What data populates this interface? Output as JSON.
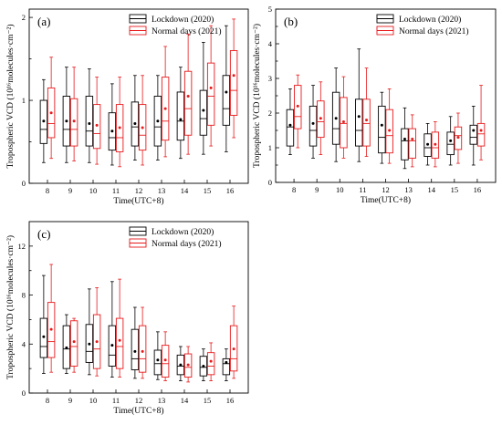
{
  "figure": {
    "legend": [
      "Lockdown (2020)",
      "Normal days (2021)"
    ],
    "ylabel": "Tropospheric  VCD (10¹⁶molecules·cm⁻²)",
    "xlabel": "Time(UTC+8)",
    "colors": {
      "lockdown": "#000000",
      "normal": "#e8191b"
    }
  },
  "chart_data": [
    {
      "type": "box",
      "panel_label": "(a)",
      "xlabel": "Time(UTC+8)",
      "ylabel": "Tropospheric  VCD (10¹⁶molecules·cm⁻²)",
      "ylim": [
        0,
        2.1
      ],
      "yticks": [
        0,
        1,
        2
      ],
      "categories": [
        "8",
        "9",
        "10",
        "11",
        "12",
        "13",
        "14",
        "15",
        "16"
      ],
      "legend": [
        "Lockdown (2020)",
        "Normal days (2021)"
      ],
      "legend_position": "top-right",
      "series": [
        {
          "name": "Lockdown (2020)",
          "color": "#000000",
          "boxes": [
            {
              "min": 0.25,
              "q1": 0.48,
              "median": 0.65,
              "q3": 1.0,
              "max": 1.25,
              "mean": 0.75
            },
            {
              "min": 0.25,
              "q1": 0.45,
              "median": 0.65,
              "q3": 1.05,
              "max": 1.4,
              "mean": 0.75
            },
            {
              "min": 0.25,
              "q1": 0.45,
              "median": 0.63,
              "q3": 1.05,
              "max": 1.38,
              "mean": 0.72
            },
            {
              "min": 0.22,
              "q1": 0.4,
              "median": 0.55,
              "q3": 0.85,
              "max": 1.2,
              "mean": 0.63
            },
            {
              "min": 0.28,
              "q1": 0.45,
              "median": 0.68,
              "q3": 0.98,
              "max": 1.3,
              "mean": 0.72
            },
            {
              "min": 0.28,
              "q1": 0.45,
              "median": 0.68,
              "q3": 1.05,
              "max": 1.3,
              "mean": 0.75
            },
            {
              "min": 0.3,
              "q1": 0.52,
              "median": 0.75,
              "q3": 1.1,
              "max": 1.4,
              "mean": 0.77
            },
            {
              "min": 0.35,
              "q1": 0.58,
              "median": 0.78,
              "q3": 1.12,
              "max": 1.7,
              "mean": 0.88
            },
            {
              "min": 0.38,
              "q1": 0.7,
              "median": 0.9,
              "q3": 1.3,
              "max": 1.9,
              "mean": 1.1
            }
          ]
        },
        {
          "name": "Normal days (2021)",
          "color": "#e8191b",
          "boxes": [
            {
              "min": 0.3,
              "q1": 0.55,
              "median": 0.72,
              "q3": 1.15,
              "max": 1.52,
              "mean": 0.85
            },
            {
              "min": 0.27,
              "q1": 0.45,
              "median": 0.65,
              "q3": 1.02,
              "max": 1.4,
              "mean": 0.75
            },
            {
              "min": 0.23,
              "q1": 0.42,
              "median": 0.6,
              "q3": 0.95,
              "max": 1.28,
              "mean": 0.7
            },
            {
              "min": 0.2,
              "q1": 0.38,
              "median": 0.55,
              "q3": 0.95,
              "max": 1.28,
              "mean": 0.67
            },
            {
              "min": 0.22,
              "q1": 0.4,
              "median": 0.58,
              "q3": 0.95,
              "max": 1.3,
              "mean": 0.67
            },
            {
              "min": 0.32,
              "q1": 0.52,
              "median": 0.75,
              "q3": 1.28,
              "max": 1.65,
              "mean": 0.9
            },
            {
              "min": 0.35,
              "q1": 0.58,
              "median": 0.9,
              "q3": 1.35,
              "max": 1.8,
              "mean": 1.05
            },
            {
              "min": 0.45,
              "q1": 0.7,
              "median": 1.05,
              "q3": 1.45,
              "max": 1.9,
              "mean": 1.15
            },
            {
              "min": 0.55,
              "q1": 0.82,
              "median": 1.12,
              "q3": 1.6,
              "max": 1.98,
              "mean": 1.3
            }
          ]
        }
      ]
    },
    {
      "type": "box",
      "panel_label": "(b)",
      "xlabel": "Time(UTC+8)",
      "ylabel": "Tropospheric  VCD (10¹⁶molecules·cm⁻²)",
      "ylim": [
        0,
        5
      ],
      "yticks": [
        0,
        1,
        2,
        3,
        4,
        5
      ],
      "categories": [
        "8",
        "9",
        "10",
        "11",
        "12",
        "13",
        "14",
        "15",
        "16"
      ],
      "legend": [
        "Lockdown (2020)",
        "Normal days (2021)"
      ],
      "legend_position": "top-right",
      "series": [
        {
          "name": "Lockdown (2020)",
          "color": "#000000",
          "boxes": [
            {
              "min": 0.8,
              "q1": 1.05,
              "median": 1.6,
              "q3": 2.1,
              "max": 2.7,
              "mean": 1.65
            },
            {
              "min": 0.7,
              "q1": 1.05,
              "median": 1.5,
              "q3": 2.2,
              "max": 2.8,
              "mean": 1.7
            },
            {
              "min": 0.6,
              "q1": 1.1,
              "median": 1.55,
              "q3": 2.6,
              "max": 3.3,
              "mean": 1.85
            },
            {
              "min": 0.6,
              "q1": 1.05,
              "median": 1.5,
              "q3": 2.4,
              "max": 3.85,
              "mean": 1.9
            },
            {
              "min": 0.55,
              "q1": 0.85,
              "median": 1.3,
              "q3": 2.2,
              "max": 2.6,
              "mean": 1.65
            },
            {
              "min": 0.4,
              "q1": 0.65,
              "median": 1.2,
              "q3": 1.55,
              "max": 2.15,
              "mean": 1.25
            },
            {
              "min": 0.5,
              "q1": 0.75,
              "median": 1.0,
              "q3": 1.4,
              "max": 1.7,
              "mean": 1.1
            },
            {
              "min": 0.5,
              "q1": 0.8,
              "median": 1.1,
              "q3": 1.45,
              "max": 1.9,
              "mean": 1.2
            },
            {
              "min": 0.5,
              "q1": 1.1,
              "median": 1.3,
              "q3": 1.65,
              "max": 2.2,
              "mean": 1.5
            }
          ]
        },
        {
          "name": "Normal days (2021)",
          "color": "#e8191b",
          "boxes": [
            {
              "min": 1.0,
              "q1": 1.55,
              "median": 1.9,
              "q3": 2.8,
              "max": 3.1,
              "mean": 2.2
            },
            {
              "min": 0.8,
              "q1": 1.3,
              "median": 1.75,
              "q3": 2.35,
              "max": 2.9,
              "mean": 1.85
            },
            {
              "min": 0.7,
              "q1": 1.0,
              "median": 1.7,
              "q3": 2.45,
              "max": 3.05,
              "mean": 1.75
            },
            {
              "min": 0.75,
              "q1": 1.05,
              "median": 1.7,
              "q3": 2.4,
              "max": 3.3,
              "mean": 1.8
            },
            {
              "min": 0.55,
              "q1": 0.85,
              "median": 1.35,
              "q3": 2.1,
              "max": 2.7,
              "mean": 1.5
            },
            {
              "min": 0.45,
              "q1": 0.7,
              "median": 1.2,
              "q3": 1.55,
              "max": 1.95,
              "mean": 1.25
            },
            {
              "min": 0.45,
              "q1": 0.7,
              "median": 1.0,
              "q3": 1.45,
              "max": 1.75,
              "mean": 1.1
            },
            {
              "min": 0.55,
              "q1": 0.95,
              "median": 1.35,
              "q3": 1.6,
              "max": 2.0,
              "mean": 1.3
            },
            {
              "min": 0.65,
              "q1": 1.05,
              "median": 1.4,
              "q3": 1.7,
              "max": 2.8,
              "mean": 1.5
            }
          ]
        }
      ]
    },
    {
      "type": "box",
      "panel_label": "(c)",
      "xlabel": "Time(UTC+8)",
      "ylabel": "Tropospheric  VCD (10¹⁶molecules·cm⁻²)",
      "ylim": [
        0,
        14
      ],
      "yticks": [
        0,
        4,
        8,
        12
      ],
      "categories": [
        "8",
        "9",
        "10",
        "11",
        "12",
        "13",
        "14",
        "15",
        "16"
      ],
      "legend": [
        "Lockdown (2020)",
        "Normal days (2021)"
      ],
      "legend_position": "top-right",
      "series": [
        {
          "name": "Lockdown (2020)",
          "color": "#000000",
          "boxes": [
            {
              "min": 1.6,
              "q1": 2.9,
              "median": 3.8,
              "q3": 6.1,
              "max": 9.6,
              "mean": 4.6
            },
            {
              "min": 1.6,
              "q1": 2.0,
              "median": 3.6,
              "q3": 5.5,
              "max": 6.4,
              "mean": 3.7
            },
            {
              "min": 1.5,
              "q1": 2.5,
              "median": 3.4,
              "q3": 5.6,
              "max": 8.5,
              "mean": 4.0
            },
            {
              "min": 1.3,
              "q1": 2.2,
              "median": 3.1,
              "q3": 5.5,
              "max": 9.1,
              "mean": 3.9
            },
            {
              "min": 1.2,
              "q1": 1.9,
              "median": 2.8,
              "q3": 5.2,
              "max": 7.0,
              "mean": 3.4
            },
            {
              "min": 1.1,
              "q1": 1.5,
              "median": 2.4,
              "q3": 3.5,
              "max": 5.0,
              "mean": 2.7
            },
            {
              "min": 1.0,
              "q1": 1.5,
              "median": 2.2,
              "q3": 3.1,
              "max": 3.8,
              "mean": 2.3
            },
            {
              "min": 1.0,
              "q1": 1.4,
              "median": 2.1,
              "q3": 3.0,
              "max": 3.6,
              "mean": 2.2
            },
            {
              "min": 1.0,
              "q1": 1.5,
              "median": 2.4,
              "q3": 2.8,
              "max": 3.6,
              "mean": 2.5
            }
          ]
        },
        {
          "name": "Normal days (2021)",
          "color": "#e8191b",
          "boxes": [
            {
              "min": 1.7,
              "q1": 2.9,
              "median": 4.2,
              "q3": 7.4,
              "max": 10.5,
              "mean": 5.2
            },
            {
              "min": 1.7,
              "q1": 2.2,
              "median": 3.8,
              "q3": 5.9,
              "max": 6.1,
              "mean": 4.2
            },
            {
              "min": 1.4,
              "q1": 2.0,
              "median": 3.6,
              "q3": 6.4,
              "max": 8.6,
              "mean": 4.2
            },
            {
              "min": 1.3,
              "q1": 2.0,
              "median": 3.8,
              "q3": 6.1,
              "max": 9.3,
              "mean": 4.3
            },
            {
              "min": 1.2,
              "q1": 1.7,
              "median": 2.8,
              "q3": 5.5,
              "max": 7.0,
              "mean": 3.4
            },
            {
              "min": 1.0,
              "q1": 1.3,
              "median": 2.4,
              "q3": 3.9,
              "max": 5.0,
              "mean": 2.7
            },
            {
              "min": 0.9,
              "q1": 1.3,
              "median": 2.1,
              "q3": 3.2,
              "max": 3.8,
              "mean": 2.3
            },
            {
              "min": 1.0,
              "q1": 1.5,
              "median": 2.2,
              "q3": 3.3,
              "max": 4.1,
              "mean": 2.6
            },
            {
              "min": 1.2,
              "q1": 1.8,
              "median": 2.8,
              "q3": 5.5,
              "max": 7.1,
              "mean": 3.6
            }
          ]
        }
      ]
    }
  ]
}
